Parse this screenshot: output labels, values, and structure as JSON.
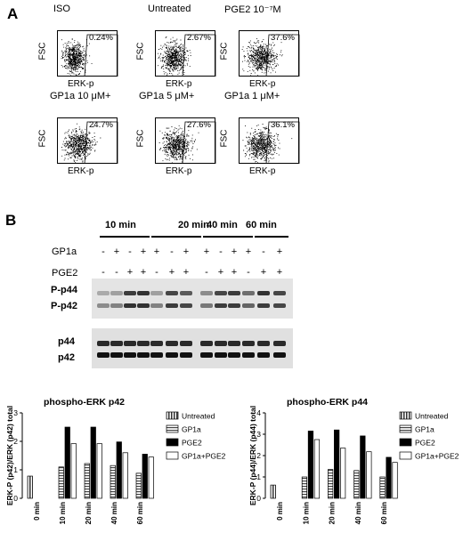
{
  "panel_a": {
    "letter": "A",
    "plots": [
      {
        "title": "ISO",
        "pct": "0.24%",
        "ylabel": "FSC",
        "xlabel": "ERK-p"
      },
      {
        "title": "Untreated",
        "pct": "2.67%",
        "ylabel": "FSC",
        "xlabel": "ERK-p"
      },
      {
        "title": "PGE2 10⁻⁷M",
        "pct": "37.6%",
        "ylabel": "FSC",
        "xlabel": "ERK-p"
      },
      {
        "title": "GP1a 10 μM+",
        "pct": "24.7%",
        "ylabel": "FSC",
        "xlabel": "ERK-p"
      },
      {
        "title": "GP1a 5 μM+",
        "pct": "27.6%",
        "ylabel": "FSC",
        "xlabel": "ERK-p"
      },
      {
        "title": "GP1a 1 μM+",
        "pct": "36.1%",
        "ylabel": "FSC",
        "xlabel": "ERK-p"
      }
    ]
  },
  "panel_b": {
    "letter": "B",
    "timepoints": [
      "10 min",
      "20 min",
      "40 min",
      "60 min"
    ],
    "row_gp1a": "GP1a",
    "row_pge2": "PGE2",
    "gp1a_signs": [
      "-",
      "+",
      "-",
      "+",
      "+",
      "-",
      "+",
      "+",
      "-",
      "+",
      "+",
      "-",
      "+"
    ],
    "pge2_signs": [
      "-",
      "-",
      "+",
      "+",
      "-",
      "+",
      "+",
      "-",
      "+",
      "+",
      "-",
      "+",
      "+"
    ],
    "band_top1": "P-p44",
    "band_top2": "P-p42",
    "band_bot1": "p44",
    "band_bot2": "p42"
  },
  "chart_data": [
    {
      "type": "bar",
      "title": "phospho-ERK p42",
      "ylabel": "ERK-P (p42)/ERK (p42) total",
      "ylim": [
        0,
        3
      ],
      "yticks": [
        "0",
        "1",
        "2",
        "3"
      ],
      "categories": [
        "0 min",
        "10 min",
        "20 min",
        "40 min",
        "60 min"
      ],
      "series": [
        {
          "name": "Untreated",
          "values": [
            0.78,
            null,
            null,
            null,
            null
          ]
        },
        {
          "name": "GP1a",
          "values": [
            null,
            1.1,
            1.22,
            1.15,
            0.88
          ]
        },
        {
          "name": "PGE2",
          "values": [
            null,
            2.5,
            2.5,
            1.98,
            1.55
          ]
        },
        {
          "name": "GP1a+PGE2",
          "values": [
            null,
            1.92,
            1.92,
            1.6,
            1.45
          ]
        }
      ],
      "legend": "right"
    },
    {
      "type": "bar",
      "title": "phospho-ERK p44",
      "ylabel": "ERK-P (p44)/ERK (p44) total",
      "ylim": [
        0,
        4
      ],
      "yticks": [
        "0",
        "1",
        "2",
        "3",
        "4"
      ],
      "categories": [
        "0 min",
        "10 min",
        "20 min",
        "40 min",
        "60 min"
      ],
      "series": [
        {
          "name": "Untreated",
          "values": [
            0.62,
            null,
            null,
            null,
            null
          ]
        },
        {
          "name": "GP1a",
          "values": [
            null,
            1.0,
            1.35,
            1.3,
            1.0
          ]
        },
        {
          "name": "PGE2",
          "values": [
            null,
            3.15,
            3.2,
            2.92,
            1.92
          ]
        },
        {
          "name": "GP1a+PGE2",
          "values": [
            null,
            2.75,
            2.35,
            2.18,
            1.68
          ]
        }
      ],
      "legend": "right"
    }
  ],
  "colors": {
    "untreated_fill": "#9a9a9a",
    "gp1a_fill": "#d0d0d0",
    "pge2_fill": "#000000",
    "combo_fill": "#ffffff",
    "stroke": "#000000"
  }
}
